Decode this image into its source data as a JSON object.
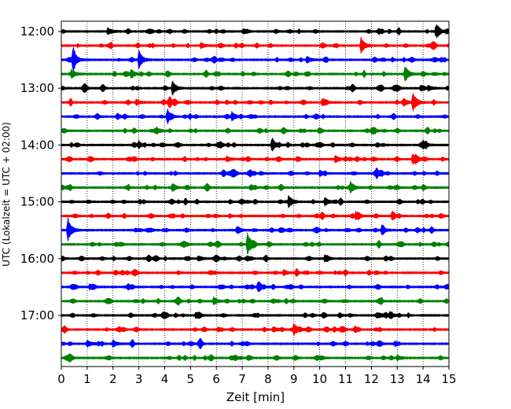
{
  "chart_data": {
    "type": "line",
    "xlabel": "Zeit  [min]",
    "ylabel": "UTC (Lokalzeit = UTC + 02:00)",
    "xlim": [
      0,
      15
    ],
    "x_ticks": [
      "0",
      "1",
      "2",
      "3",
      "4",
      "5",
      "6",
      "7",
      "8",
      "9",
      "10",
      "11",
      "12",
      "13",
      "14",
      "15"
    ],
    "y_ticks": [
      "12:00",
      "13:00",
      "14:00",
      "15:00",
      "16:00",
      "17:00"
    ],
    "grid": {
      "vertical": true,
      "style": "dotted"
    },
    "trace_colors": [
      "#000000",
      "#ff0000",
      "#0000ff",
      "#008000"
    ],
    "traces": [
      {
        "start": "12:00",
        "color_index": 0,
        "events": [
          {
            "x": 14.5,
            "amplitude": 1.0
          },
          {
            "x": 1.8,
            "amplitude": 0.5
          }
        ]
      },
      {
        "start": "12:15",
        "color_index": 1,
        "events": [
          {
            "x": 11.6,
            "amplitude": 1.2
          },
          {
            "x": 5.4,
            "amplitude": 0.4
          }
        ]
      },
      {
        "start": "12:30",
        "color_index": 2,
        "events": [
          {
            "x": 0.45,
            "amplitude": 1.5
          },
          {
            "x": 3.0,
            "amplitude": 1.4
          },
          {
            "x": 9.5,
            "amplitude": 0.5
          }
        ]
      },
      {
        "start": "12:45",
        "color_index": 3,
        "events": [
          {
            "x": 13.3,
            "amplitude": 1.3
          },
          {
            "x": 0.4,
            "amplitude": 0.6
          },
          {
            "x": 2.7,
            "amplitude": 0.7
          }
        ]
      },
      {
        "start": "13:00",
        "color_index": 0,
        "events": [
          {
            "x": 4.3,
            "amplitude": 1.1
          },
          {
            "x": 14.2,
            "amplitude": 0.4
          }
        ]
      },
      {
        "start": "13:15",
        "color_index": 1,
        "events": [
          {
            "x": 13.6,
            "amplitude": 1.6
          },
          {
            "x": 10.1,
            "amplitude": 0.6
          },
          {
            "x": 2.9,
            "amplitude": 0.4
          }
        ]
      },
      {
        "start": "13:30",
        "color_index": 2,
        "events": [
          {
            "x": 4.1,
            "amplitude": 1.1
          },
          {
            "x": 6.6,
            "amplitude": 0.7
          }
        ]
      },
      {
        "start": "13:45",
        "color_index": 3,
        "events": [
          {
            "x": 12.0,
            "amplitude": 0.5
          },
          {
            "x": 3.7,
            "amplitude": 0.4
          }
        ]
      },
      {
        "start": "14:00",
        "color_index": 0,
        "events": [
          {
            "x": 8.15,
            "amplitude": 1.0
          },
          {
            "x": 14.0,
            "amplitude": 0.6
          },
          {
            "x": 3.0,
            "amplitude": 0.4
          }
        ]
      },
      {
        "start": "14:15",
        "color_index": 1,
        "events": [
          {
            "x": 13.6,
            "amplitude": 0.8
          },
          {
            "x": 10.6,
            "amplitude": 0.5
          },
          {
            "x": 6.4,
            "amplitude": 0.4
          }
        ]
      },
      {
        "start": "14:30",
        "color_index": 2,
        "events": [
          {
            "x": 12.2,
            "amplitude": 0.5
          },
          {
            "x": 10.0,
            "amplitude": 0.4
          }
        ]
      },
      {
        "start": "14:45",
        "color_index": 3,
        "events": [
          {
            "x": 11.2,
            "amplitude": 0.9
          },
          {
            "x": 4.3,
            "amplitude": 0.4
          }
        ]
      },
      {
        "start": "15:00",
        "color_index": 0,
        "events": [
          {
            "x": 8.8,
            "amplitude": 1.0
          },
          {
            "x": 10.2,
            "amplitude": 0.6
          }
        ]
      },
      {
        "start": "15:15",
        "color_index": 1,
        "events": [
          {
            "x": 11.4,
            "amplitude": 0.6
          },
          {
            "x": 12.8,
            "amplitude": 0.4
          }
        ]
      },
      {
        "start": "15:30",
        "color_index": 2,
        "events": [
          {
            "x": 0.25,
            "amplitude": 2.0
          },
          {
            "x": 12.4,
            "amplitude": 0.6
          },
          {
            "x": 6.8,
            "amplitude": 0.4
          }
        ]
      },
      {
        "start": "15:45",
        "color_index": 3,
        "events": [
          {
            "x": 7.2,
            "amplitude": 1.6
          }
        ]
      },
      {
        "start": "16:00",
        "color_index": 0,
        "events": [
          {
            "x": 10.2,
            "amplitude": 0.5
          },
          {
            "x": 5.3,
            "amplitude": 0.4
          }
        ]
      },
      {
        "start": "16:15",
        "color_index": 1,
        "events": [
          {
            "x": 8.6,
            "amplitude": 0.4
          }
        ]
      },
      {
        "start": "16:30",
        "color_index": 2,
        "events": [
          {
            "x": 7.6,
            "amplitude": 0.5
          },
          {
            "x": 1.1,
            "amplitude": 0.4
          }
        ]
      },
      {
        "start": "16:45",
        "color_index": 3,
        "events": [
          {
            "x": 5.9,
            "amplitude": 0.6
          }
        ]
      },
      {
        "start": "17:00",
        "color_index": 0,
        "events": [
          {
            "x": 12.7,
            "amplitude": 0.5
          },
          {
            "x": 5.2,
            "amplitude": 0.4
          }
        ]
      },
      {
        "start": "17:15",
        "color_index": 1,
        "events": [
          {
            "x": 9.0,
            "amplitude": 0.9
          },
          {
            "x": 8.2,
            "amplitude": 0.4
          }
        ]
      },
      {
        "start": "17:30",
        "color_index": 2,
        "events": [
          {
            "x": 1.0,
            "amplitude": 0.5
          },
          {
            "x": 2.0,
            "amplitude": 0.5
          }
        ]
      },
      {
        "start": "17:45",
        "color_index": 3,
        "events": [
          {
            "x": 13.0,
            "amplitude": 0.4
          }
        ]
      }
    ]
  }
}
